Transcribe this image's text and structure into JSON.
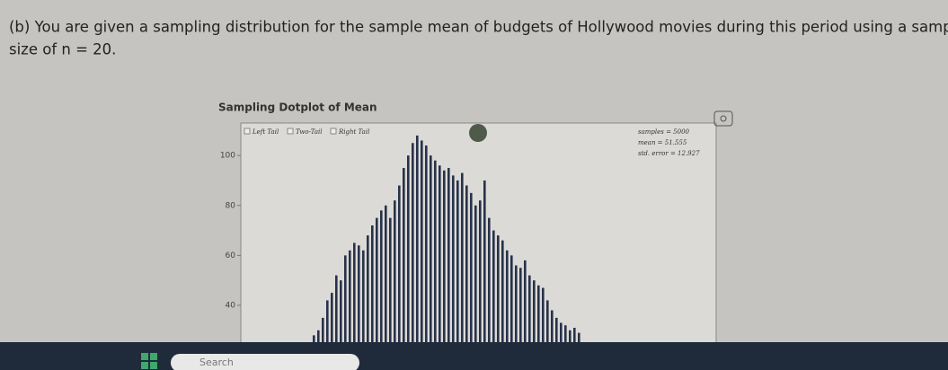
{
  "question": {
    "lines": [
      "(b) You are given a sampling distribution for the sample mean of budgets of Hollywood movies during this period using a sample",
      "size of n = 20."
    ]
  },
  "dotplot": {
    "title": "Sampling Dotplot of Mean",
    "options": [
      "Left Tail",
      "Two-Tail",
      "Right Tail"
    ],
    "stats": [
      "samples = 5000",
      "mean = 51.555",
      "std. error = 12.927"
    ],
    "ylim": [
      25,
      113
    ],
    "yticks": [
      100,
      80,
      60,
      40
    ],
    "color": "#27324a",
    "values": [
      28,
      30,
      35,
      42,
      45,
      52,
      50,
      60,
      62,
      65,
      64,
      62,
      68,
      72,
      75,
      78,
      80,
      75,
      82,
      88,
      95,
      100,
      105,
      108,
      106,
      104,
      100,
      98,
      96,
      94,
      95,
      92,
      90,
      93,
      88,
      85,
      80,
      82,
      90,
      75,
      70,
      68,
      66,
      62,
      60,
      56,
      55,
      58,
      52,
      50,
      48,
      47,
      42,
      38,
      35,
      33,
      32,
      30,
      31,
      29
    ]
  },
  "taskbar": {
    "search": "Search"
  }
}
